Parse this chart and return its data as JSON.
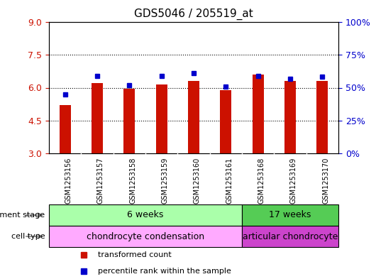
{
  "title": "GDS5046 / 205519_at",
  "samples": [
    "GSM1253156",
    "GSM1253157",
    "GSM1253158",
    "GSM1253159",
    "GSM1253160",
    "GSM1253161",
    "GSM1253168",
    "GSM1253169",
    "GSM1253170"
  ],
  "bar_values": [
    5.2,
    6.2,
    5.95,
    6.15,
    6.3,
    5.9,
    6.6,
    6.3,
    6.3
  ],
  "percentile_values": [
    5.7,
    6.55,
    6.1,
    6.55,
    6.65,
    6.05,
    6.55,
    6.4,
    6.5
  ],
  "ylim": [
    3,
    9
  ],
  "yticks": [
    3,
    4.5,
    6,
    7.5,
    9
  ],
  "y2ticks": [
    0,
    25,
    50,
    75,
    100
  ],
  "y2labels": [
    "0%",
    "25%",
    "50%",
    "75%",
    "100%"
  ],
  "bar_color": "#cc1100",
  "dot_color": "#0000cc",
  "plot_bg": "#ffffff",
  "ytick_color": "#cc1100",
  "y2tick_color": "#0000cc",
  "bar_width": 0.35,
  "base_value": 3,
  "group1_label": "6 weeks",
  "group2_label": "17 weeks",
  "group1_color": "#aaffaa",
  "group2_color": "#55cc55",
  "cell1_label": "chondrocyte condensation",
  "cell2_label": "articular chondrocyte",
  "cell1_color": "#ffaaff",
  "cell2_color": "#cc44cc",
  "dev_stage_label": "development stage",
  "cell_type_label": "cell type",
  "legend_bar_label": "transformed count",
  "legend_dot_label": "percentile rank within the sample",
  "group1_indices": [
    0,
    1,
    2,
    3,
    4,
    5
  ],
  "group2_indices": [
    6,
    7,
    8
  ]
}
